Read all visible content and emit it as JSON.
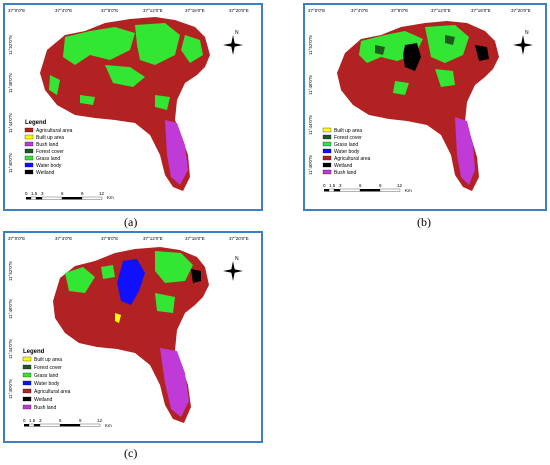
{
  "panels": [
    {
      "id": "a",
      "caption": "(a)",
      "top_ticks": [
        "37°0'0\"E",
        "37°4'0\"E",
        "37°8'0\"E",
        "37°12'0\"E",
        "37°16'0\"E",
        "37°20'0\"E"
      ],
      "left_ticks": [
        "11°52'0\"N",
        "11°48'0\"N",
        "11°44'0\"N",
        "11°40'0\"N"
      ],
      "legend_title": "Legend",
      "legend": [
        {
          "label": "Agricultural area",
          "color": "#b22222"
        },
        {
          "label": "Built up area",
          "color": "#ffff00"
        },
        {
          "label": "Bush land",
          "color": "#c03ad8"
        },
        {
          "label": "Forest cover",
          "color": "#1e5a1e"
        },
        {
          "label": "Grass land",
          "color": "#33e633"
        },
        {
          "label": "Water body",
          "color": "#1010ff"
        },
        {
          "label": "Wetland",
          "color": "#000000"
        }
      ],
      "scale": [
        "0",
        "1.5",
        "3",
        "6",
        "9",
        "12"
      ],
      "scale_unit": "Km",
      "north": "N"
    },
    {
      "id": "b",
      "caption": "(b)",
      "top_ticks": [
        "37°0'0\"E",
        "37°4'0\"E",
        "37°8'0\"E",
        "37°12'0\"E",
        "37°16'0\"E",
        "37°20'0\"E"
      ],
      "left_ticks": [
        "11°52'0\"N",
        "11°48'0\"N",
        "11°44'0\"N",
        "11°40'0\"N"
      ],
      "legend_title": "",
      "legend": [
        {
          "label": "Built up area",
          "color": "#ffff00"
        },
        {
          "label": "Forest cover",
          "color": "#1e5a1e"
        },
        {
          "label": "Grass land",
          "color": "#33e633"
        },
        {
          "label": "Water body",
          "color": "#1010ff"
        },
        {
          "label": "Agricultural area",
          "color": "#b22222"
        },
        {
          "label": "Wetland",
          "color": "#000000"
        },
        {
          "label": "Bush land",
          "color": "#c03ad8"
        }
      ],
      "scale": [
        "0",
        "1.5",
        "3",
        "6",
        "9",
        "12"
      ],
      "scale_unit": "Km",
      "north": "N"
    },
    {
      "id": "c",
      "caption": "(c)",
      "top_ticks": [
        "37°0'0\"E",
        "37°4'0\"E",
        "37°8'0\"E",
        "37°12'0\"E",
        "37°16'0\"E",
        "37°20'0\"E"
      ],
      "left_ticks": [
        "11°52'0\"N",
        "11°48'0\"N",
        "11°44'0\"N",
        "11°40'0\"N"
      ],
      "legend_title": "Legend",
      "legend": [
        {
          "label": "Built up area",
          "color": "#ffff00"
        },
        {
          "label": "Forest cover",
          "color": "#1e5a1e"
        },
        {
          "label": "Grass land",
          "color": "#33e633"
        },
        {
          "label": "Water body",
          "color": "#1010ff"
        },
        {
          "label": "Agricultural area",
          "color": "#b22222"
        },
        {
          "label": "Wetland",
          "color": "#000000"
        },
        {
          "label": "Bush land",
          "color": "#c03ad8"
        }
      ],
      "scale": [
        "0",
        "1.5",
        "3",
        "6",
        "9",
        "12"
      ],
      "scale_unit": "Km",
      "north": "N"
    }
  ]
}
